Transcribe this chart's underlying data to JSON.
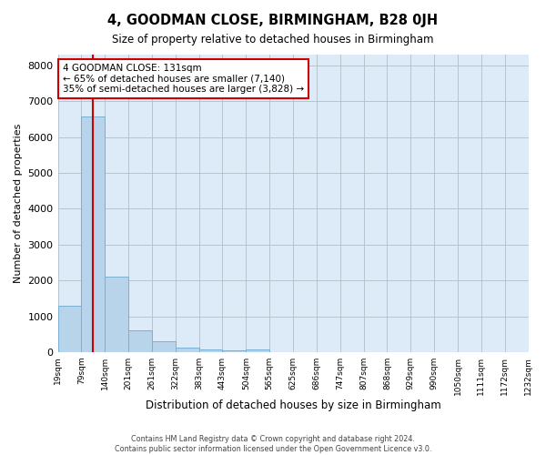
{
  "title": "4, GOODMAN CLOSE, BIRMINGHAM, B28 0JH",
  "subtitle": "Size of property relative to detached houses in Birmingham",
  "xlabel": "Distribution of detached houses by size in Birmingham",
  "ylabel": "Number of detached properties",
  "bin_labels": [
    "19sqm",
    "79sqm",
    "140sqm",
    "201sqm",
    "261sqm",
    "322sqm",
    "383sqm",
    "443sqm",
    "504sqm",
    "565sqm",
    "625sqm",
    "686sqm",
    "747sqm",
    "807sqm",
    "868sqm",
    "929sqm",
    "990sqm",
    "1050sqm",
    "1111sqm",
    "1172sqm",
    "1232sqm"
  ],
  "bar_values": [
    1300,
    6580,
    2100,
    620,
    300,
    130,
    75,
    60,
    75,
    0,
    0,
    0,
    0,
    0,
    0,
    0,
    0,
    0,
    0,
    0,
    0
  ],
  "bar_color": "#b8d4ea",
  "bar_edge_color": "#7ab0d4",
  "property_line_color": "#cc0000",
  "ylim": [
    0,
    8300
  ],
  "yticks": [
    0,
    1000,
    2000,
    3000,
    4000,
    5000,
    6000,
    7000,
    8000
  ],
  "annotation_title": "4 GOODMAN CLOSE: 131sqm",
  "annotation_line1": "← 65% of detached houses are smaller (7,140)",
  "annotation_line2": "35% of semi-detached houses are larger (3,828) →",
  "annotation_box_color": "#ffffff",
  "annotation_box_edge": "#cc0000",
  "footer_line1": "Contains HM Land Registry data © Crown copyright and database right 2024.",
  "footer_line2": "Contains public sector information licensed under the Open Government Licence v3.0.",
  "background_color": "#ddeaf7",
  "grid_color": "#b0bec5",
  "property_line_bin_index": 1.5
}
